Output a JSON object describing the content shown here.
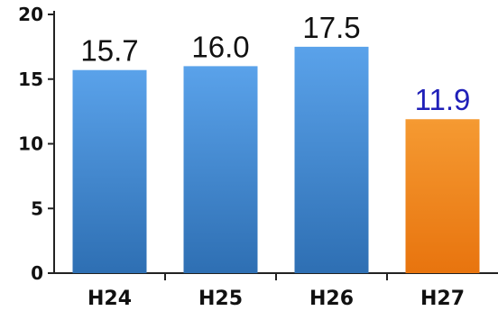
{
  "chart_data": {
    "type": "bar",
    "categories": [
      "H24",
      "H25",
      "H26",
      "H27"
    ],
    "values": [
      15.7,
      16.0,
      17.5,
      11.9
    ],
    "data_labels": [
      "15.7",
      "16.0",
      "17.5",
      "11.9"
    ],
    "yticks": [
      0,
      5,
      10,
      15,
      20
    ],
    "ylim": [
      0,
      20
    ],
    "grid": false,
    "title": "",
    "xlabel": "",
    "ylabel": "",
    "colors": {
      "bars": [
        "#4a90d9",
        "#4a90d9",
        "#4a90d9",
        "#f28a1f"
      ],
      "labels": [
        "#111111",
        "#111111",
        "#111111",
        "#1f1fb8"
      ]
    }
  }
}
